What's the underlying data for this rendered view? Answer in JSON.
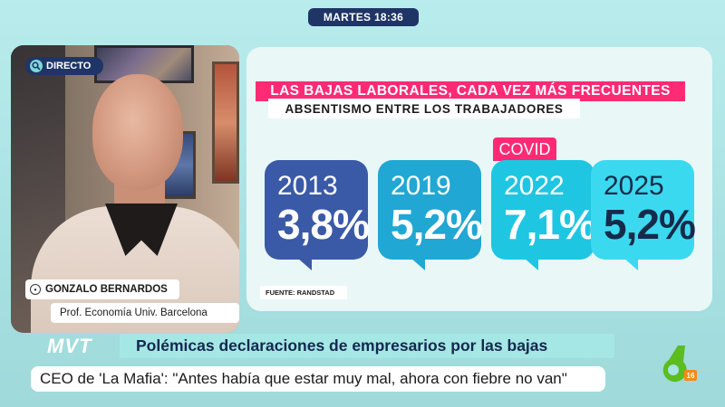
{
  "time_pill": "MARTES 18:36",
  "live": {
    "label": "DIRECTO",
    "icon": "search-icon"
  },
  "guest": {
    "name": "GONZALO BERNARDOS",
    "name_icon": "mic-icon",
    "role": "Prof. Economía Univ. Barcelona"
  },
  "graphic": {
    "headline": "LAS BAJAS LABORALES, CADA VEZ MÁS FRECUENTES",
    "subheadline": "ABSENTISMO ENTRE LOS TRABAJADORES",
    "covid_tag": "COVID",
    "source": "FUENTE: RANDSTAD",
    "cards": [
      {
        "year": "2013",
        "value": "3,8%",
        "color": "#3a5aa8"
      },
      {
        "year": "2019",
        "value": "5,2%",
        "color": "#21a7d3"
      },
      {
        "year": "2022",
        "value": "7,1%",
        "color": "#1ec6e2"
      },
      {
        "year": "2025",
        "value": "5,2%",
        "color": "#3bd9ef"
      }
    ]
  },
  "lower_third": {
    "show_logo": "MVT",
    "headline": "Polémicas declaraciones de empresarios por las bajas",
    "quote": "CEO de 'La Mafia': \"Antes había que estar muy mal, ahora con fiebre no van\""
  },
  "channel": {
    "logo": "laSexta-logo",
    "badge": "16",
    "accent": "#5bbd1f"
  }
}
